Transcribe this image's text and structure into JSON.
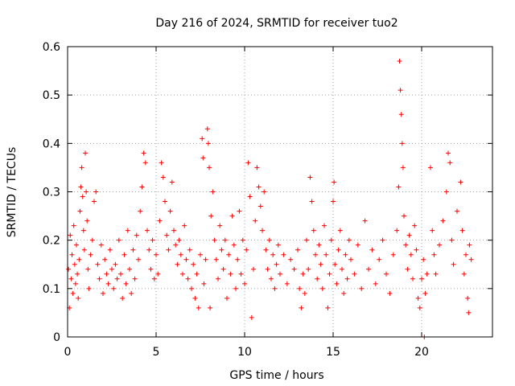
{
  "chart_data": {
    "type": "scatter",
    "title": "Day 216 of 2024, SRMTID for receiver tuo2",
    "xlabel": "GPS time / hours",
    "ylabel": "SRMTID / TECUs",
    "xlim": [
      0,
      24
    ],
    "ylim": [
      0,
      0.6
    ],
    "xticks": [
      0,
      5,
      10,
      15,
      20
    ],
    "xtick_labels": [
      "0",
      "5",
      "10",
      "15",
      "20"
    ],
    "yticks": [
      0,
      0.1,
      0.2,
      0.3,
      0.4,
      0.5,
      0.6
    ],
    "ytick_labels": [
      "0",
      "0.1",
      "0.2",
      "0.3",
      "0.4",
      "0.5",
      "0.6"
    ],
    "grid": true,
    "marker": "plus",
    "series": [
      {
        "name": "SRMTID",
        "color": "#ff0000",
        "points": [
          [
            0.05,
            0.14
          ],
          [
            0.1,
            0.06
          ],
          [
            0.15,
            0.21
          ],
          [
            0.2,
            0.12
          ],
          [
            0.25,
            0.17
          ],
          [
            0.3,
            0.09
          ],
          [
            0.35,
            0.23
          ],
          [
            0.4,
            0.15
          ],
          [
            0.45,
            0.11
          ],
          [
            0.5,
            0.19
          ],
          [
            0.55,
            0.13
          ],
          [
            0.6,
            0.08
          ],
          [
            0.65,
            0.16
          ],
          [
            0.7,
            0.26
          ],
          [
            0.75,
            0.31
          ],
          [
            0.8,
            0.35
          ],
          [
            0.85,
            0.29
          ],
          [
            0.9,
            0.22
          ],
          [
            0.95,
            0.18
          ],
          [
            1.0,
            0.38
          ],
          [
            1.05,
            0.3
          ],
          [
            1.1,
            0.24
          ],
          [
            1.15,
            0.14
          ],
          [
            1.2,
            0.1
          ],
          [
            1.3,
            0.17
          ],
          [
            1.4,
            0.2
          ],
          [
            1.5,
            0.28
          ],
          [
            1.6,
            0.3
          ],
          [
            1.7,
            0.15
          ],
          [
            1.8,
            0.12
          ],
          [
            1.9,
            0.19
          ],
          [
            2.0,
            0.09
          ],
          [
            2.1,
            0.16
          ],
          [
            2.2,
            0.13
          ],
          [
            2.3,
            0.11
          ],
          [
            2.4,
            0.18
          ],
          [
            2.5,
            0.14
          ],
          [
            2.6,
            0.1
          ],
          [
            2.7,
            0.15
          ],
          [
            2.8,
            0.12
          ],
          [
            2.9,
            0.2
          ],
          [
            3.0,
            0.13
          ],
          [
            3.1,
            0.08
          ],
          [
            3.2,
            0.17
          ],
          [
            3.3,
            0.11
          ],
          [
            3.4,
            0.22
          ],
          [
            3.5,
            0.14
          ],
          [
            3.6,
            0.09
          ],
          [
            3.7,
            0.18
          ],
          [
            3.8,
            0.12
          ],
          [
            3.9,
            0.21
          ],
          [
            4.0,
            0.16
          ],
          [
            4.1,
            0.26
          ],
          [
            4.2,
            0.31
          ],
          [
            4.3,
            0.38
          ],
          [
            4.4,
            0.36
          ],
          [
            4.5,
            0.22
          ],
          [
            4.6,
            0.18
          ],
          [
            4.7,
            0.14
          ],
          [
            4.8,
            0.2
          ],
          [
            4.9,
            0.12
          ],
          [
            5.0,
            0.17
          ],
          [
            5.1,
            0.13
          ],
          [
            5.2,
            0.24
          ],
          [
            5.3,
            0.36
          ],
          [
            5.4,
            0.33
          ],
          [
            5.5,
            0.28
          ],
          [
            5.6,
            0.21
          ],
          [
            5.7,
            0.18
          ],
          [
            5.8,
            0.26
          ],
          [
            5.9,
            0.32
          ],
          [
            6.0,
            0.22
          ],
          [
            6.1,
            0.19
          ],
          [
            6.2,
            0.15
          ],
          [
            6.3,
            0.2
          ],
          [
            6.4,
            0.17
          ],
          [
            6.5,
            0.13
          ],
          [
            6.6,
            0.23
          ],
          [
            6.7,
            0.16
          ],
          [
            6.8,
            0.12
          ],
          [
            6.9,
            0.18
          ],
          [
            7.0,
            0.1
          ],
          [
            7.1,
            0.15
          ],
          [
            7.2,
            0.08
          ],
          [
            7.3,
            0.13
          ],
          [
            7.4,
            0.06
          ],
          [
            7.5,
            0.17
          ],
          [
            7.6,
            0.41
          ],
          [
            7.65,
            0.37
          ],
          [
            7.7,
            0.11
          ],
          [
            7.8,
            0.16
          ],
          [
            7.9,
            0.43
          ],
          [
            7.95,
            0.4
          ],
          [
            8.0,
            0.35
          ],
          [
            8.05,
            0.06
          ],
          [
            8.1,
            0.25
          ],
          [
            8.2,
            0.3
          ],
          [
            8.3,
            0.2
          ],
          [
            8.4,
            0.16
          ],
          [
            8.5,
            0.12
          ],
          [
            8.6,
            0.23
          ],
          [
            8.7,
            0.18
          ],
          [
            8.8,
            0.14
          ],
          [
            8.9,
            0.2
          ],
          [
            9.0,
            0.08
          ],
          [
            9.1,
            0.17
          ],
          [
            9.2,
            0.13
          ],
          [
            9.3,
            0.25
          ],
          [
            9.4,
            0.19
          ],
          [
            9.5,
            0.1
          ],
          [
            9.6,
            0.16
          ],
          [
            9.7,
            0.26
          ],
          [
            9.8,
            0.13
          ],
          [
            9.9,
            0.2
          ],
          [
            10.0,
            0.11
          ],
          [
            10.1,
            0.18
          ],
          [
            10.2,
            0.36
          ],
          [
            10.3,
            0.29
          ],
          [
            10.4,
            0.04
          ],
          [
            10.5,
            0.14
          ],
          [
            10.6,
            0.24
          ],
          [
            10.7,
            0.35
          ],
          [
            10.8,
            0.31
          ],
          [
            10.9,
            0.27
          ],
          [
            11.0,
            0.22
          ],
          [
            11.1,
            0.3
          ],
          [
            11.2,
            0.18
          ],
          [
            11.3,
            0.14
          ],
          [
            11.4,
            0.2
          ],
          [
            11.5,
            0.12
          ],
          [
            11.6,
            0.17
          ],
          [
            11.7,
            0.1
          ],
          [
            11.8,
            0.15
          ],
          [
            11.9,
            0.19
          ],
          [
            12.0,
            0.13
          ],
          [
            12.2,
            0.17
          ],
          [
            12.4,
            0.11
          ],
          [
            12.6,
            0.16
          ],
          [
            12.8,
            0.14
          ],
          [
            13.0,
            0.18
          ],
          [
            13.1,
            0.1
          ],
          [
            13.2,
            0.06
          ],
          [
            13.3,
            0.13
          ],
          [
            13.4,
            0.09
          ],
          [
            13.5,
            0.2
          ],
          [
            13.6,
            0.14
          ],
          [
            13.7,
            0.33
          ],
          [
            13.8,
            0.28
          ],
          [
            13.9,
            0.22
          ],
          [
            14.0,
            0.17
          ],
          [
            14.1,
            0.12
          ],
          [
            14.2,
            0.19
          ],
          [
            14.3,
            0.15
          ],
          [
            14.4,
            0.1
          ],
          [
            14.5,
            0.23
          ],
          [
            14.6,
            0.17
          ],
          [
            14.7,
            0.06
          ],
          [
            14.8,
            0.13
          ],
          [
            14.9,
            0.2
          ],
          [
            15.0,
            0.28
          ],
          [
            15.05,
            0.32
          ],
          [
            15.1,
            0.15
          ],
          [
            15.2,
            0.11
          ],
          [
            15.3,
            0.18
          ],
          [
            15.4,
            0.22
          ],
          [
            15.5,
            0.14
          ],
          [
            15.6,
            0.09
          ],
          [
            15.7,
            0.17
          ],
          [
            15.8,
            0.12
          ],
          [
            15.9,
            0.2
          ],
          [
            16.0,
            0.16
          ],
          [
            16.2,
            0.13
          ],
          [
            16.4,
            0.19
          ],
          [
            16.6,
            0.1
          ],
          [
            16.8,
            0.24
          ],
          [
            17.0,
            0.14
          ],
          [
            17.2,
            0.18
          ],
          [
            17.4,
            0.11
          ],
          [
            17.6,
            0.16
          ],
          [
            17.8,
            0.2
          ],
          [
            18.0,
            0.13
          ],
          [
            18.2,
            0.09
          ],
          [
            18.4,
            0.17
          ],
          [
            18.6,
            0.22
          ],
          [
            18.7,
            0.31
          ],
          [
            18.75,
            0.57
          ],
          [
            18.8,
            0.51
          ],
          [
            18.85,
            0.46
          ],
          [
            18.9,
            0.4
          ],
          [
            18.95,
            0.35
          ],
          [
            19.0,
            0.25
          ],
          [
            19.1,
            0.19
          ],
          [
            19.2,
            0.14
          ],
          [
            19.3,
            0.21
          ],
          [
            19.4,
            0.17
          ],
          [
            19.5,
            0.12
          ],
          [
            19.6,
            0.23
          ],
          [
            19.7,
            0.18
          ],
          [
            19.8,
            0.08
          ],
          [
            19.9,
            0.06
          ],
          [
            20.0,
            0.12
          ],
          [
            20.1,
            0.16
          ],
          [
            20.15,
            0.0
          ],
          [
            20.2,
            0.09
          ],
          [
            20.3,
            0.13
          ],
          [
            20.5,
            0.35
          ],
          [
            20.6,
            0.22
          ],
          [
            20.7,
            0.17
          ],
          [
            20.8,
            0.13
          ],
          [
            21.0,
            0.19
          ],
          [
            21.2,
            0.24
          ],
          [
            21.4,
            0.3
          ],
          [
            21.5,
            0.38
          ],
          [
            21.6,
            0.36
          ],
          [
            21.7,
            0.2
          ],
          [
            21.8,
            0.15
          ],
          [
            22.0,
            0.26
          ],
          [
            22.2,
            0.32
          ],
          [
            22.3,
            0.22
          ],
          [
            22.4,
            0.13
          ],
          [
            22.5,
            0.17
          ],
          [
            22.6,
            0.08
          ],
          [
            22.65,
            0.05
          ],
          [
            22.7,
            0.19
          ],
          [
            22.8,
            0.16
          ]
        ]
      }
    ]
  }
}
